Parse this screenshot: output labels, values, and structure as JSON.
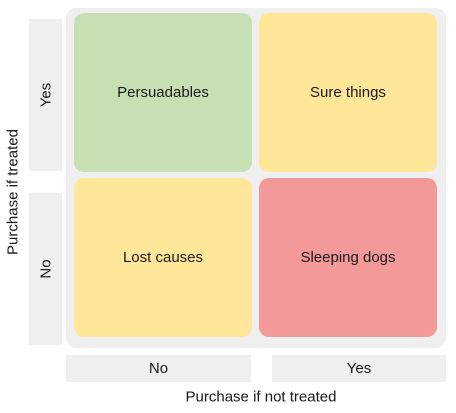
{
  "axes": {
    "y_title": "Purchase if treated",
    "x_title": "Purchase if not treated",
    "y_ticks": [
      "Yes",
      "No"
    ],
    "x_ticks": [
      "No",
      "Yes"
    ]
  },
  "quadrants": {
    "top_left": {
      "label": "Persuadables",
      "color": "#c6e0b4"
    },
    "top_right": {
      "label": "Sure things",
      "color": "#ffe699"
    },
    "bottom_left": {
      "label": "Lost causes",
      "color": "#ffe699"
    },
    "bottom_right": {
      "label": "Sleeping dogs",
      "color": "#f4999a"
    }
  }
}
